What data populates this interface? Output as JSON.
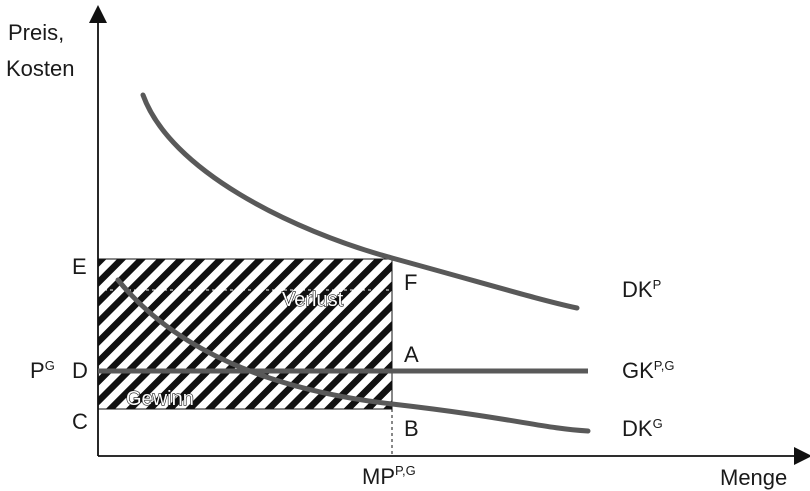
{
  "axes": {
    "y_label_line1": "Preis,",
    "y_label_line2": "Kosten",
    "x_label": "Menge"
  },
  "points": {
    "E": "E",
    "D": "D",
    "C": "C",
    "F": "F",
    "A": "A",
    "B": "B"
  },
  "price": {
    "base": "P",
    "sup": "G"
  },
  "quantity": {
    "base": "MP",
    "sup": "P,G"
  },
  "curves": {
    "dkp": {
      "base": "DK",
      "sup": "P"
    },
    "gk": {
      "base": "GK",
      "sup": "P,G"
    },
    "dkg": {
      "base": "DK",
      "sup": "G"
    }
  },
  "regions": {
    "loss": "Verlust",
    "profit": "Gewinn"
  },
  "colors": {
    "curve": "#595959",
    "axis": "#111111",
    "hatch": "#111111"
  }
}
